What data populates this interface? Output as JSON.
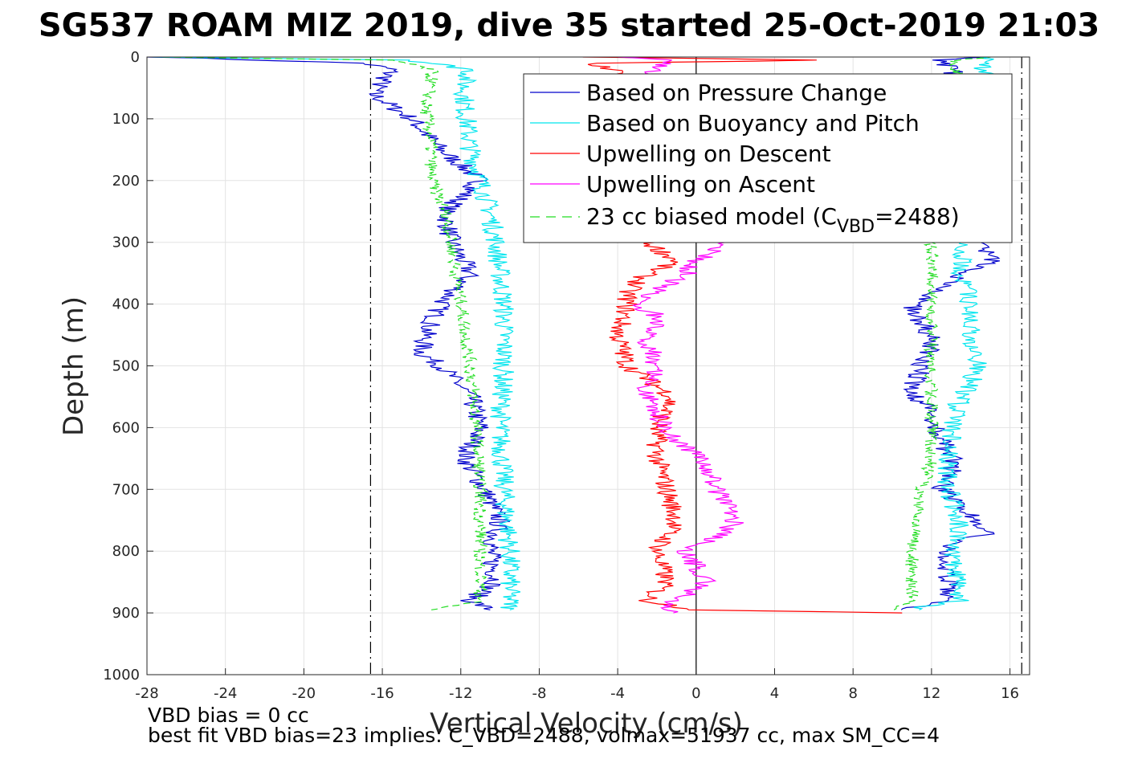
{
  "chart_data": {
    "type": "line",
    "title": "SG537 ROAM MIZ 2019, dive 35 started 25-Oct-2019 21:03",
    "xlabel": "Vertical Velocity (cm/s)",
    "ylabel": "Depth (m)",
    "xlim": [
      -28,
      17
    ],
    "ylim": [
      1000,
      0
    ],
    "x_ticks": [
      "-28",
      "-24",
      "-20",
      "-16",
      "-12",
      "-8",
      "-4",
      "0",
      "4",
      "8",
      "12",
      "16"
    ],
    "y_ticks": [
      "0",
      "100",
      "200",
      "300",
      "400",
      "500",
      "600",
      "700",
      "800",
      "900",
      "1000"
    ],
    "grid": true,
    "legend_position": "top-right",
    "vertical_lines": [
      {
        "x": -16.6,
        "style": "dash-dot",
        "color": "#000000"
      },
      {
        "x": 16.6,
        "style": "dash-dot",
        "color": "#000000"
      },
      {
        "x": 0,
        "style": "solid",
        "color": "#000000"
      }
    ],
    "series": [
      {
        "name": "Based on Pressure Change",
        "color": "#0000cc",
        "style": "solid",
        "descent": {
          "depth": [
            0,
            10,
            20,
            40,
            60,
            80,
            100,
            150,
            200,
            250,
            300,
            350,
            400,
            450,
            480,
            500,
            550,
            600,
            650,
            700,
            750,
            800,
            850,
            880,
            895
          ],
          "velocity": [
            -27.5,
            -17,
            -15.5,
            -16,
            -16.5,
            -15.5,
            -14.5,
            -13,
            -11,
            -12.8,
            -12.5,
            -11.5,
            -13,
            -13.8,
            -14,
            -13,
            -11.5,
            -11,
            -11.8,
            -10.8,
            -10,
            -10.5,
            -10.2,
            -11.5,
            -10.5
          ]
        },
        "ascent": {
          "depth": [
            895,
            880,
            850,
            820,
            790,
            770,
            740,
            700,
            660,
            620,
            580,
            540,
            500,
            460,
            430,
            400,
            380,
            350,
            330,
            300
          ],
          "velocity": [
            10.5,
            12.5,
            13,
            12.5,
            12.8,
            15,
            14,
            12.5,
            13.2,
            12.5,
            12,
            11,
            11.5,
            12,
            11.5,
            11,
            12.5,
            13.5,
            15,
            14.5
          ]
        },
        "top": {
          "depth": [
            40,
            20,
            5,
            0
          ],
          "velocity": [
            13.5,
            13.0,
            12.5,
            15
          ]
        }
      },
      {
        "name": "Based on Buoyancy and Pitch",
        "color": "#00e5ee",
        "style": "solid",
        "descent": {
          "depth": [
            0,
            5,
            20,
            40,
            80,
            150,
            200,
            250,
            300,
            400,
            500,
            600,
            700,
            800,
            880,
            895
          ],
          "velocity": [
            -27.5,
            -14.5,
            -11.5,
            -11.8,
            -11.8,
            -11.5,
            -11,
            -10.5,
            -10.2,
            -9.8,
            -9.8,
            -10,
            -9.8,
            -9.5,
            -9.5,
            -9.5
          ]
        },
        "ascent": {
          "depth": [
            895,
            880,
            800,
            750,
            700,
            600,
            550,
            500,
            450,
            400,
            350,
            300
          ],
          "velocity": [
            11,
            13.5,
            13,
            13.5,
            12.8,
            13,
            13.5,
            14.5,
            14,
            14,
            13.5,
            13.5
          ]
        },
        "top": {
          "depth": [
            40,
            20,
            5,
            0
          ],
          "velocity": [
            15.5,
            14.5,
            14.8,
            15
          ]
        }
      },
      {
        "name": "Upwelling on Descent",
        "color": "#ff0000",
        "style": "solid",
        "descent": {
          "depth": [
            0,
            5,
            10,
            30,
            300,
            330,
            350,
            380,
            400,
            450,
            500,
            550,
            600,
            650,
            700,
            750,
            800,
            850,
            880,
            895,
            900
          ],
          "velocity": [
            -6,
            6.5,
            -5.5,
            -3.5,
            -2.5,
            -1,
            -2.5,
            -3.5,
            -3.5,
            -4,
            -3.5,
            -1.2,
            -2,
            -2,
            -1.5,
            -1,
            -2,
            -1.5,
            -2.5,
            0,
            10.5
          ]
        }
      },
      {
        "name": "Upwelling on Ascent",
        "color": "#ff00ff",
        "style": "solid",
        "ascent": {
          "depth": [
            900,
            880,
            850,
            800,
            770,
            750,
            720,
            700,
            660,
            620,
            580,
            540,
            500,
            460,
            420,
            400,
            380,
            350,
            330,
            300
          ],
          "velocity": [
            -1.5,
            -1,
            0.5,
            -0.5,
            1.5,
            2,
            1.5,
            1,
            0.5,
            -1,
            -2,
            -2.5,
            -2,
            -2.5,
            -2,
            -3,
            -2,
            -0.5,
            0,
            1.5
          ]
        },
        "top": {
          "depth": [
            40,
            20,
            5,
            0
          ],
          "velocity": [
            -3.5,
            -2,
            -1.5,
            -4
          ]
        }
      },
      {
        "name": "23 cc biased model (C_VBD=2488)",
        "legend_label_main": "23 cc biased model (C",
        "legend_label_sub": "VBD",
        "legend_label_end": "=2488)",
        "color": "#22dd22",
        "style": "dashed",
        "descent": {
          "depth": [
            0,
            5,
            20,
            40,
            80,
            150,
            200,
            250,
            300,
            400,
            500,
            600,
            700,
            800,
            880,
            895
          ],
          "velocity": [
            -27.5,
            -15.5,
            -13.5,
            -13.5,
            -13.8,
            -13.5,
            -13.5,
            -12.8,
            -12.5,
            -12,
            -11.5,
            -11.2,
            -11,
            -11,
            -11,
            -13.5
          ]
        },
        "ascent": {
          "depth": [
            895,
            880,
            800,
            700,
            650,
            600,
            500,
            400,
            350,
            300
          ],
          "velocity": [
            10,
            11,
            11,
            11.5,
            12,
            12,
            12,
            12,
            12,
            12
          ]
        },
        "top": {
          "depth": [
            40,
            20,
            5,
            0
          ],
          "velocity": [
            13.5,
            13.3,
            13.2,
            15
          ]
        }
      }
    ]
  },
  "notes": {
    "line1": "VBD bias = 0 cc",
    "line2": "best fit VBD bias=23 implies: C_VBD=2488, volmax=51937 cc, max SM_CC=4"
  }
}
